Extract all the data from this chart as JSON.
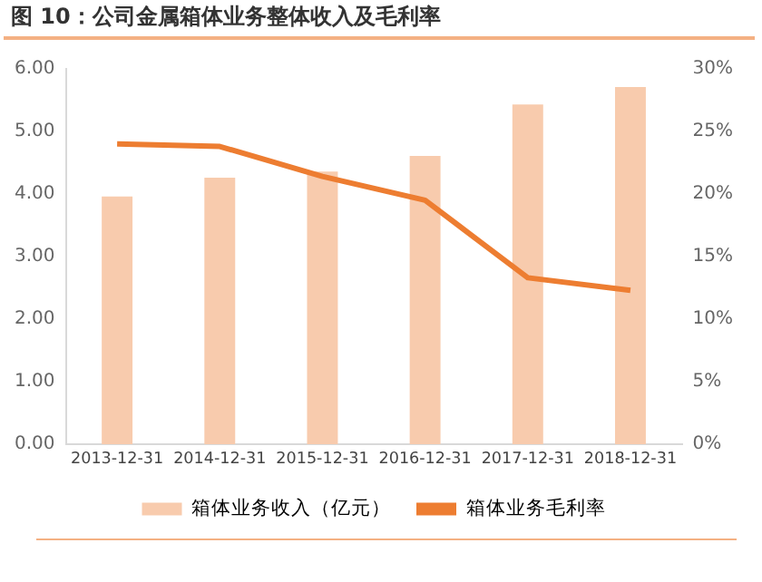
{
  "chart_data": {
    "type": "bar",
    "title": "图 10：公司金属箱体业务整体收入及毛利率",
    "categories": [
      "2013-12-31",
      "2014-12-31",
      "2015-12-31",
      "2016-12-31",
      "2017-12-31",
      "2018-12-31"
    ],
    "series": [
      {
        "name": "箱体业务收入（亿元）",
        "color": "#f8cbad",
        "values": [
          3.96,
          4.26,
          4.36,
          4.61,
          5.43,
          5.71
        ]
      },
      {
        "name": "箱体业务毛利率",
        "type": "line",
        "axis": "y2",
        "color": "#ed7d31",
        "marker": "none",
        "values": [
          24.0,
          23.8,
          21.4,
          19.5,
          13.3,
          12.3
        ]
      }
    ],
    "ylim": [
      0,
      6
    ],
    "yticks": [
      {
        "value": 0,
        "label": "0.00"
      },
      {
        "value": 1,
        "label": "1.00"
      },
      {
        "value": 2,
        "label": "2.00"
      },
      {
        "value": 3,
        "label": "3.00"
      },
      {
        "value": 4,
        "label": "4.00"
      },
      {
        "value": 5,
        "label": "5.00"
      },
      {
        "value": 6,
        "label": "6.00"
      }
    ],
    "y2lim": [
      0,
      30
    ],
    "y2ticks": [
      {
        "value": 0,
        "label": "0%"
      },
      {
        "value": 5,
        "label": "5%"
      },
      {
        "value": 10,
        "label": "10%"
      },
      {
        "value": 15,
        "label": "15%"
      },
      {
        "value": 20,
        "label": "20%"
      },
      {
        "value": 25,
        "label": "25%"
      },
      {
        "value": 30,
        "label": "30%"
      }
    ],
    "grid": false,
    "legend": "bottom"
  }
}
